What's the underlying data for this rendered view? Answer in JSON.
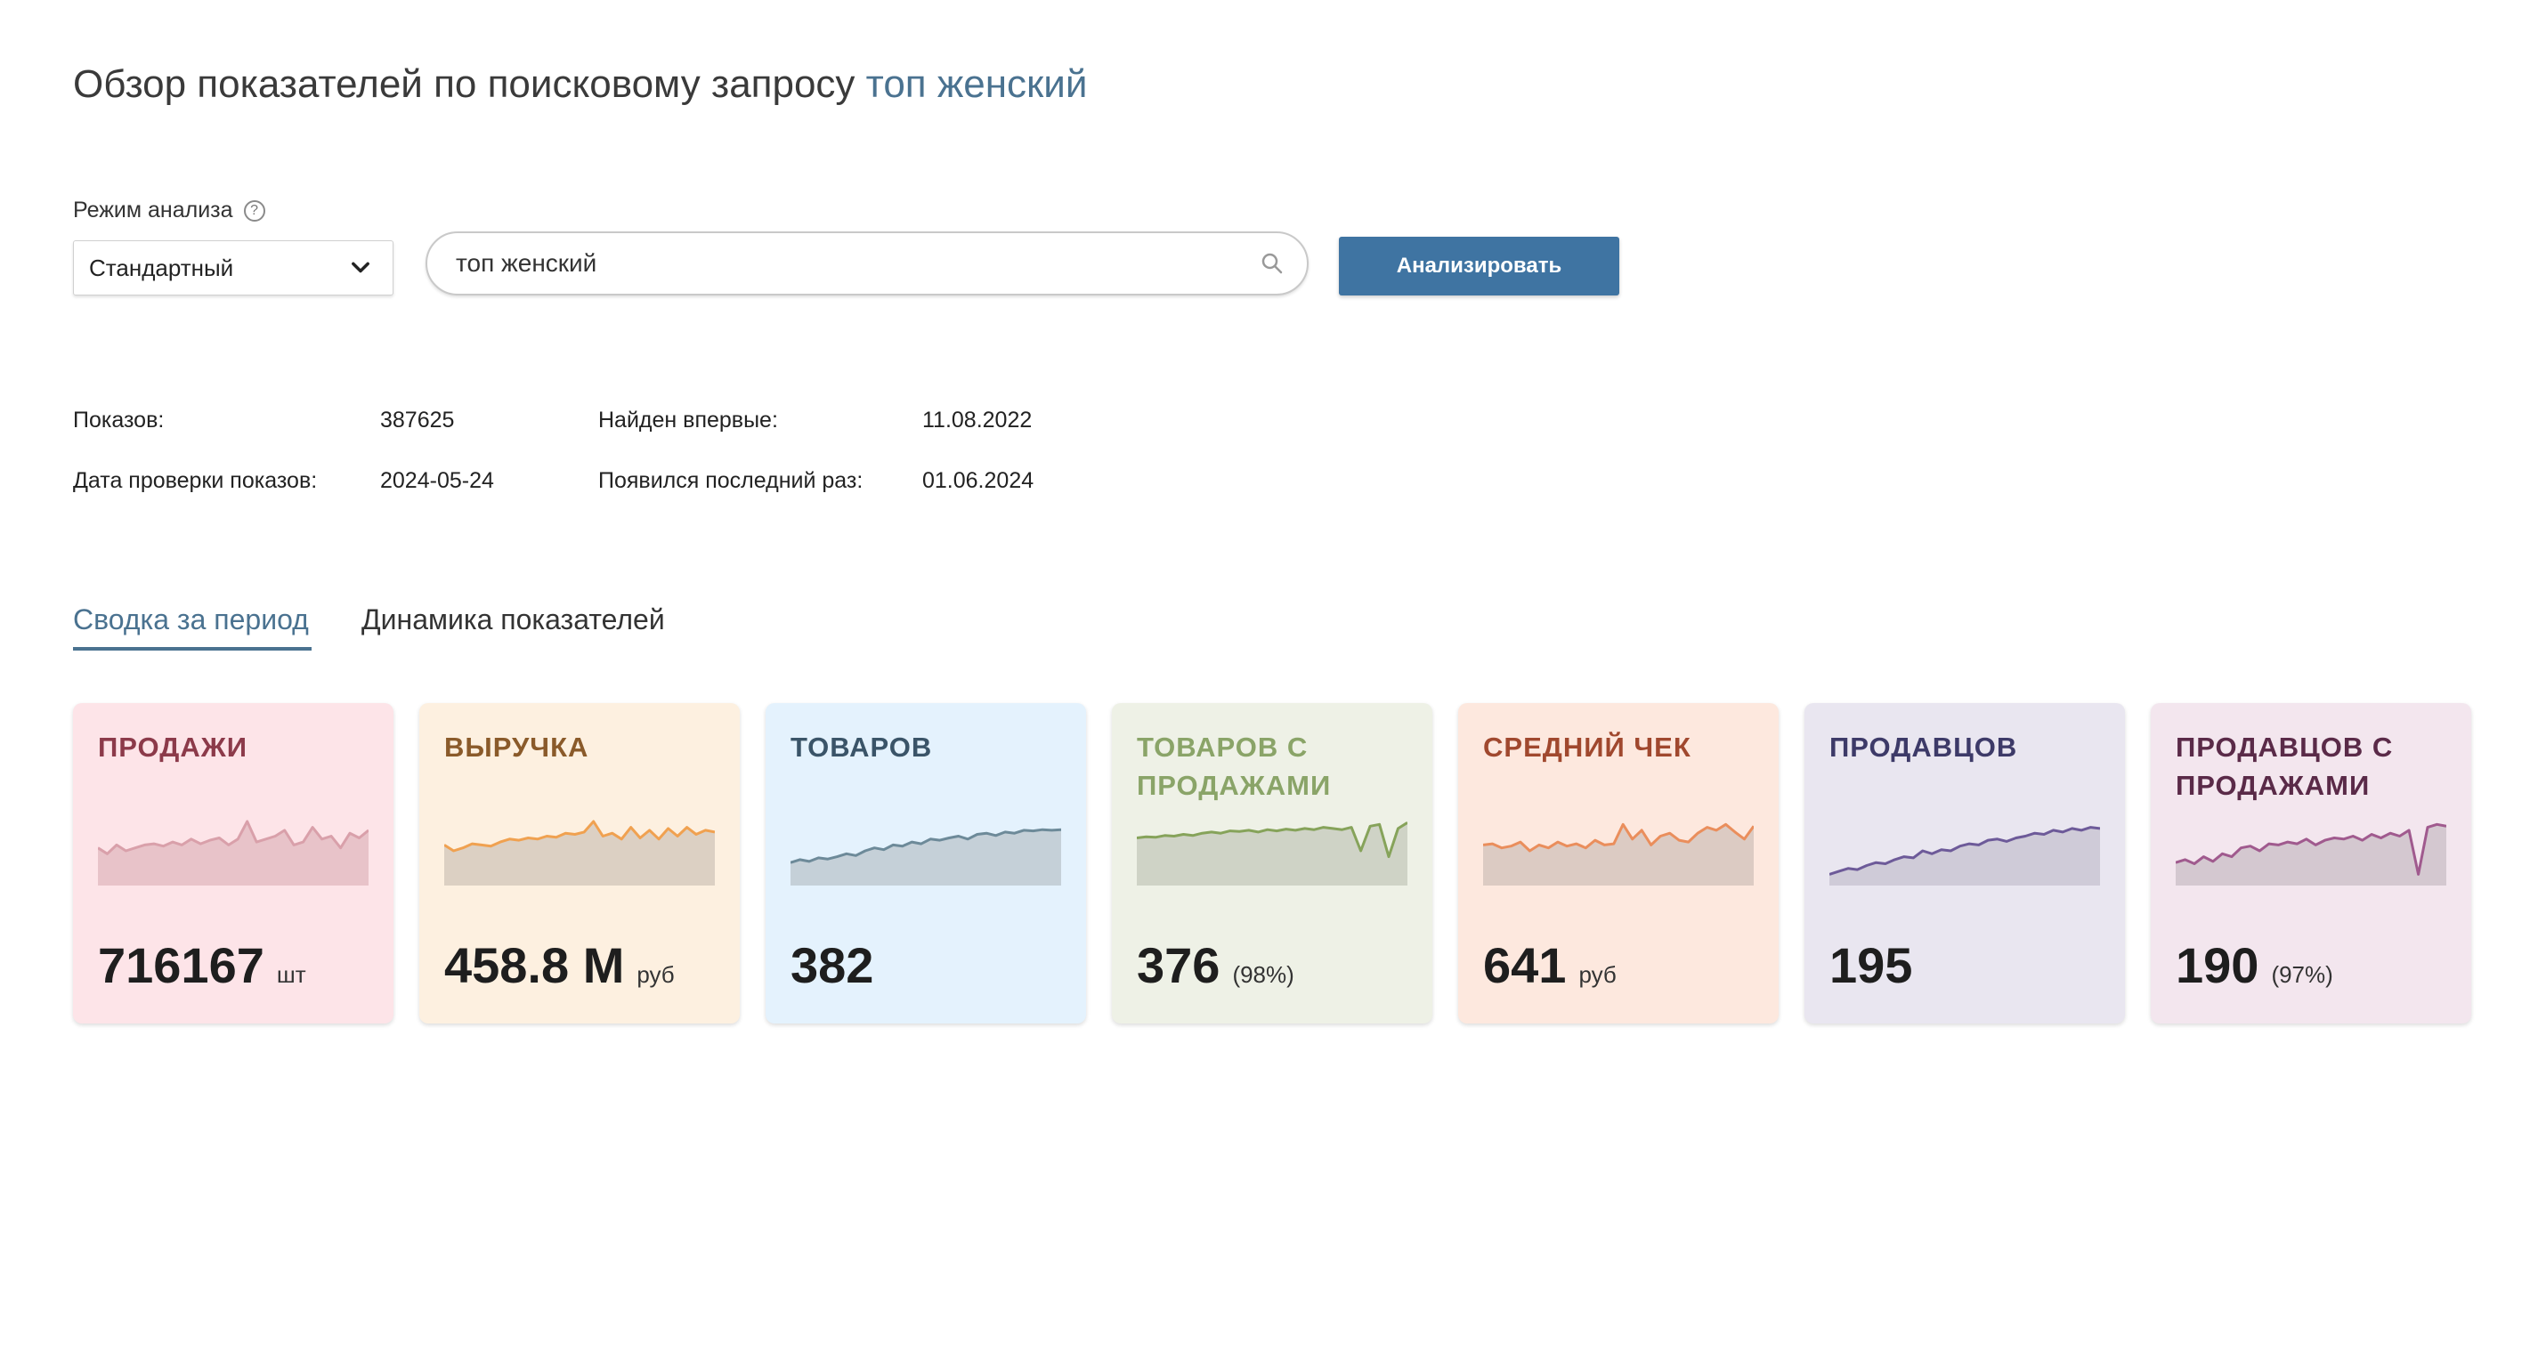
{
  "page": {
    "title_prefix": "Обзор показателей по поисковому запросу",
    "title_query": "топ женский"
  },
  "controls": {
    "mode_label": "Режим анализа",
    "mode_help": "?",
    "mode_value": "Стандартный",
    "search_value": "топ женский",
    "analyze_label": "Анализировать"
  },
  "info": {
    "impressions_label": "Показов:",
    "impressions_value": "387625",
    "check_date_label": "Дата проверки показов:",
    "check_date_value": "2024-05-24",
    "first_found_label": "Найден впервые:",
    "first_found_value": "11.08.2022",
    "last_seen_label": "Появился последний раз:",
    "last_seen_value": "01.06.2024"
  },
  "tabs": [
    {
      "label": "Сводка за период",
      "active": true
    },
    {
      "label": "Динамика показателей",
      "active": false
    }
  ],
  "cards": [
    {
      "title_lines": [
        "ПРОДАЖИ"
      ],
      "value": "716167",
      "unit": "шт",
      "bg": "#fde4e8",
      "title_color": "#8c3a4a",
      "line_color": "#d9a0aa",
      "fill_color": "#e8c3c9",
      "trend": [
        0.55,
        0.45,
        0.6,
        0.5,
        0.55,
        0.6,
        0.62,
        0.58,
        0.65,
        0.6,
        0.7,
        0.62,
        0.68,
        0.72,
        0.6,
        0.7,
        1.0,
        0.65,
        0.7,
        0.75,
        0.85,
        0.6,
        0.65,
        0.9,
        0.7,
        0.75,
        0.55,
        0.8,
        0.72,
        0.85
      ]
    },
    {
      "title_lines": [
        "ВЫРУЧКА"
      ],
      "value": "458.8 М",
      "unit": "руб",
      "bg": "#fdf0e0",
      "title_color": "#8a5a2a",
      "line_color": "#f0a150",
      "fill_color": "#dcd0c3",
      "trend": [
        0.6,
        0.5,
        0.55,
        0.62,
        0.6,
        0.58,
        0.65,
        0.7,
        0.68,
        0.72,
        0.7,
        0.75,
        0.73,
        0.8,
        0.78,
        0.82,
        1.0,
        0.75,
        0.8,
        0.7,
        0.9,
        0.72,
        0.85,
        0.7,
        0.88,
        0.75,
        0.9,
        0.78,
        0.85,
        0.82
      ]
    },
    {
      "title_lines": [
        "ТОВАРОВ"
      ],
      "value": "382",
      "unit": "",
      "bg": "#e4f2fd",
      "title_color": "#3a5468",
      "line_color": "#6d8a99",
      "fill_color": "#c5d0d8",
      "trend": [
        0.3,
        0.35,
        0.32,
        0.38,
        0.36,
        0.4,
        0.45,
        0.42,
        0.5,
        0.55,
        0.52,
        0.6,
        0.58,
        0.65,
        0.62,
        0.7,
        0.68,
        0.72,
        0.75,
        0.7,
        0.78,
        0.8,
        0.76,
        0.82,
        0.8,
        0.85,
        0.84,
        0.86,
        0.85,
        0.86
      ]
    },
    {
      "title_lines": [
        "ТОВАРОВ С",
        "ПРОДАЖАМИ"
      ],
      "value": "376",
      "unit": "(98%)",
      "bg": "#eef1e6",
      "title_color": "#8aa468",
      "line_color": "#86a35a",
      "fill_color": "#cfd3c6",
      "trend": [
        0.72,
        0.74,
        0.73,
        0.76,
        0.75,
        0.78,
        0.76,
        0.8,
        0.82,
        0.8,
        0.84,
        0.83,
        0.85,
        0.82,
        0.86,
        0.84,
        0.87,
        0.85,
        0.88,
        0.86,
        0.9,
        0.88,
        0.86,
        0.9,
        0.5,
        0.92,
        0.95,
        0.4,
        0.88,
        0.98
      ]
    },
    {
      "title_lines": [
        "СРЕДНИЙ ЧЕК"
      ],
      "value": "641",
      "unit": "руб",
      "bg": "#fde8de",
      "title_color": "#a0482e",
      "line_color": "#ea8e5c",
      "fill_color": "#dccbc3",
      "trend": [
        0.6,
        0.62,
        0.55,
        0.58,
        0.65,
        0.5,
        0.6,
        0.55,
        0.65,
        0.58,
        0.62,
        0.55,
        0.68,
        0.6,
        0.62,
        0.95,
        0.7,
        0.85,
        0.6,
        0.75,
        0.8,
        0.68,
        0.65,
        0.8,
        0.9,
        0.85,
        0.95,
        0.82,
        0.7,
        0.92
      ]
    },
    {
      "title_lines": [
        "ПРОДАВЦОВ"
      ],
      "value": "195",
      "unit": "",
      "bg": "#e9e6f0",
      "title_color": "#3d3a68",
      "line_color": "#6d5a99",
      "fill_color": "#cfcbd8",
      "trend": [
        0.1,
        0.15,
        0.2,
        0.18,
        0.25,
        0.3,
        0.28,
        0.35,
        0.4,
        0.38,
        0.5,
        0.45,
        0.52,
        0.5,
        0.58,
        0.62,
        0.6,
        0.68,
        0.7,
        0.66,
        0.72,
        0.75,
        0.8,
        0.78,
        0.85,
        0.82,
        0.88,
        0.85,
        0.9,
        0.88
      ]
    },
    {
      "title_lines": [
        "ПРОДАВЦОВ С",
        "ПРОДАЖАМИ"
      ],
      "value": "190",
      "unit": "(97%)",
      "bg": "#f3e6ee",
      "title_color": "#5a2a48",
      "line_color": "#a05a8e",
      "fill_color": "#d4c8d0",
      "trend": [
        0.3,
        0.35,
        0.28,
        0.4,
        0.32,
        0.45,
        0.4,
        0.55,
        0.58,
        0.5,
        0.62,
        0.6,
        0.65,
        0.62,
        0.7,
        0.6,
        0.68,
        0.72,
        0.7,
        0.75,
        0.68,
        0.78,
        0.72,
        0.8,
        0.75,
        0.85,
        0.1,
        0.9,
        0.95,
        0.92
      ]
    }
  ]
}
